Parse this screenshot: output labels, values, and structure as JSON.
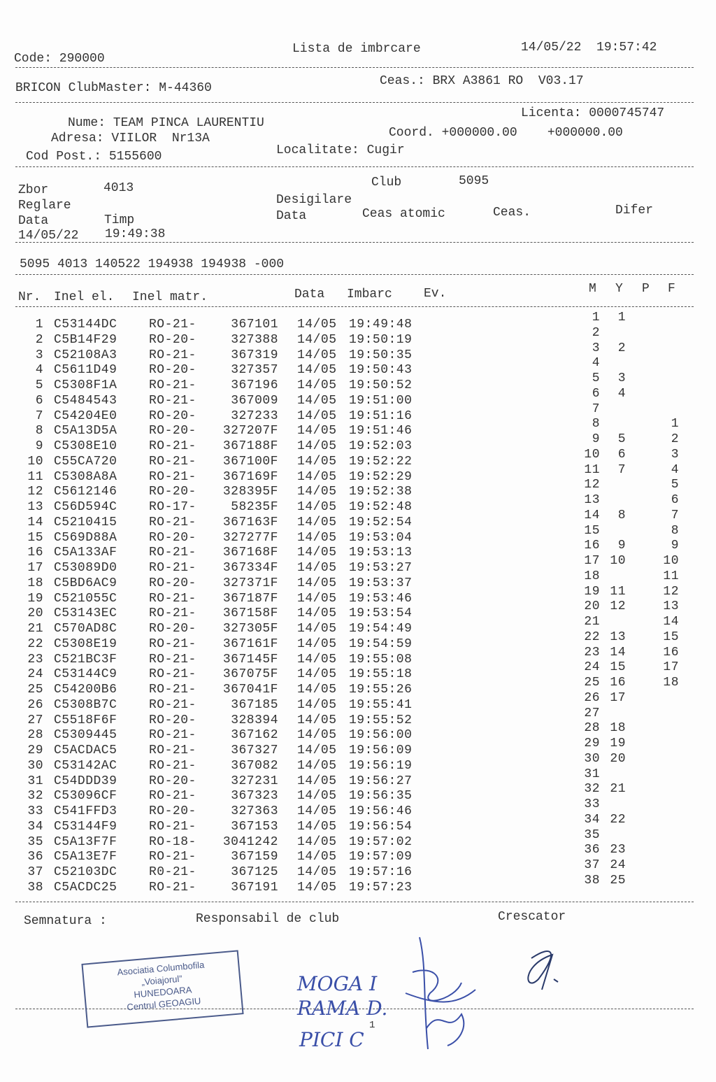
{
  "header": {
    "code": "Code: 290000",
    "title": "Lista de imbrcare",
    "datetime": "14/05/22  19:57:42",
    "device": "BRICON ClubMaster: M-44360",
    "clock": "Ceas.: BRX A3861 RO  V03.17"
  },
  "owner": {
    "name": "Nume: TEAM PINCA LAURENTIU",
    "license": "Licenta: 0000745747",
    "address": "Adresa: VIILOR  Nr13A",
    "coord": "Coord. +000000.00    +000000.00",
    "postal": "Cod Post.: 5155600",
    "locality": "Localitate: Cugir"
  },
  "flight": {
    "zbor_label": "Zbor",
    "zbor_value": "4013",
    "club_label": "Club",
    "club_value": "5095",
    "reglare": "Reglare",
    "desigilare": "Desigilare",
    "data_label": "Data",
    "timp_label": "Timp",
    "data2_label": "Data",
    "ceas_atomic": "Ceas atomic",
    "ceas": "Ceas.",
    "difer": "Difer",
    "reg_date": "14/05/22",
    "reg_time": "19:49:38",
    "summary": "5095 4013 140522 194938 194938 -000"
  },
  "table": {
    "headers": {
      "nr": "Nr.",
      "inel_el": "Inel el.",
      "inel_matr": "Inel matr.",
      "data": "Data",
      "imbarc": "Imbarc",
      "ev": "Ev.",
      "m": "M",
      "y": "Y",
      "p": "P",
      "f": "F"
    },
    "rows": [
      [
        "1",
        "C53144DC",
        "RO-21-",
        "367101",
        "14/05",
        "19:49:48",
        "1",
        "1",
        ""
      ],
      [
        "2",
        "C5B14F29",
        "RO-20-",
        "327388",
        "14/05",
        "19:50:19",
        "2",
        "",
        ""
      ],
      [
        "3",
        "C52108A3",
        "RO-21-",
        "367319",
        "14/05",
        "19:50:35",
        "3",
        "2",
        ""
      ],
      [
        "4",
        "C5611D49",
        "RO-20-",
        "327357",
        "14/05",
        "19:50:43",
        "4",
        "",
        ""
      ],
      [
        "5",
        "C5308F1A",
        "RO-21-",
        "367196",
        "14/05",
        "19:50:52",
        "5",
        "3",
        ""
      ],
      [
        "6",
        "C5484543",
        "RO-21-",
        "367009",
        "14/05",
        "19:51:00",
        "6",
        "4",
        ""
      ],
      [
        "7",
        "C54204E0",
        "RO-20-",
        "327233",
        "14/05",
        "19:51:16",
        "7",
        "",
        ""
      ],
      [
        "8",
        "C5A13D5A",
        "RO-20-",
        "327207F",
        "14/05",
        "19:51:46",
        "8",
        "",
        "1"
      ],
      [
        "9",
        "C5308E10",
        "RO-21-",
        "367188F",
        "14/05",
        "19:52:03",
        "9",
        "5",
        "2"
      ],
      [
        "10",
        "C55CA720",
        "RO-21-",
        "367100F",
        "14/05",
        "19:52:22",
        "10",
        "6",
        "3"
      ],
      [
        "11",
        "C5308A8A",
        "RO-21-",
        "367169F",
        "14/05",
        "19:52:29",
        "11",
        "7",
        "4"
      ],
      [
        "12",
        "C5612146",
        "RO-20-",
        "328395F",
        "14/05",
        "19:52:38",
        "12",
        "",
        "5"
      ],
      [
        "13",
        "C56D594C",
        "RO-17-",
        "58235F",
        "14/05",
        "19:52:48",
        "13",
        "",
        "6"
      ],
      [
        "14",
        "C5210415",
        "RO-21-",
        "367163F",
        "14/05",
        "19:52:54",
        "14",
        "8",
        "7"
      ],
      [
        "15",
        "C569D88A",
        "RO-20-",
        "327277F",
        "14/05",
        "19:53:04",
        "15",
        "",
        "8"
      ],
      [
        "16",
        "C5A133AF",
        "RO-21-",
        "367168F",
        "14/05",
        "19:53:13",
        "16",
        "9",
        "9"
      ],
      [
        "17",
        "C53089D0",
        "RO-21-",
        "367334F",
        "14/05",
        "19:53:27",
        "17",
        "10",
        "10"
      ],
      [
        "18",
        "C5BD6AC9",
        "RO-20-",
        "327371F",
        "14/05",
        "19:53:37",
        "18",
        "",
        "11"
      ],
      [
        "19",
        "C521055C",
        "RO-21-",
        "367187F",
        "14/05",
        "19:53:46",
        "19",
        "11",
        "12"
      ],
      [
        "20",
        "C53143EC",
        "RO-21-",
        "367158F",
        "14/05",
        "19:53:54",
        "20",
        "12",
        "13"
      ],
      [
        "21",
        "C570AD8C",
        "RO-20-",
        "327305F",
        "14/05",
        "19:54:49",
        "21",
        "",
        "14"
      ],
      [
        "22",
        "C5308E19",
        "RO-21-",
        "367161F",
        "14/05",
        "19:54:59",
        "22",
        "13",
        "15"
      ],
      [
        "23",
        "C521BC3F",
        "RO-21-",
        "367145F",
        "14/05",
        "19:55:08",
        "23",
        "14",
        "16"
      ],
      [
        "24",
        "C53144C9",
        "RO-21-",
        "367075F",
        "14/05",
        "19:55:18",
        "24",
        "15",
        "17"
      ],
      [
        "25",
        "C54200B6",
        "RO-21-",
        "367041F",
        "14/05",
        "19:55:26",
        "25",
        "16",
        "18"
      ],
      [
        "26",
        "C5308B7C",
        "RO-21-",
        "367185",
        "14/05",
        "19:55:41",
        "26",
        "17",
        ""
      ],
      [
        "27",
        "C5518F6F",
        "RO-20-",
        "328394",
        "14/05",
        "19:55:52",
        "27",
        "",
        ""
      ],
      [
        "28",
        "C5309445",
        "RO-21-",
        "367162",
        "14/05",
        "19:56:00",
        "28",
        "18",
        ""
      ],
      [
        "29",
        "C5ACDAC5",
        "RO-21-",
        "367327",
        "14/05",
        "19:56:09",
        "29",
        "19",
        ""
      ],
      [
        "30",
        "C53142AC",
        "RO-21-",
        "367082",
        "14/05",
        "19:56:19",
        "30",
        "20",
        ""
      ],
      [
        "31",
        "C54DDD39",
        "RO-20-",
        "327231",
        "14/05",
        "19:56:27",
        "31",
        "",
        ""
      ],
      [
        "32",
        "C53096CF",
        "RO-21-",
        "367323",
        "14/05",
        "19:56:35",
        "32",
        "21",
        ""
      ],
      [
        "33",
        "C541FFD3",
        "RO-20-",
        "327363",
        "14/05",
        "19:56:46",
        "33",
        "",
        ""
      ],
      [
        "34",
        "C53144F9",
        "RO-21-",
        "367153",
        "14/05",
        "19:56:54",
        "34",
        "22",
        ""
      ],
      [
        "35",
        "C5A13F7F",
        "RO-18-",
        "3041242",
        "14/05",
        "19:57:02",
        "35",
        "",
        ""
      ],
      [
        "36",
        "C5A13E7F",
        "RO-21-",
        "367159",
        "14/05",
        "19:57:09",
        "36",
        "23",
        ""
      ],
      [
        "37",
        "C52103DC",
        "R0-21-",
        "367125",
        "14/05",
        "19:57:16",
        "37",
        "24",
        ""
      ],
      [
        "38",
        "C5ACDC25",
        "RO-21-",
        "367191",
        "14/05",
        "19:57:23",
        "38",
        "25",
        ""
      ]
    ]
  },
  "footer": {
    "signature": "Semnatura :",
    "club_resp": "Responsabil de club",
    "breeder": "Crescator",
    "page": "1"
  },
  "stamp": [
    "Asociatia Columbofila",
    "„Voiajorul”",
    "HUNEDOARA",
    "Centrul GEOAGIU"
  ],
  "handwriting": [
    "MOGA I",
    "RAMA D.",
    "PICI C"
  ],
  "colors": {
    "ink": "#333333",
    "stamp": "#4a5a8a",
    "pen": "#3a4fa8"
  }
}
